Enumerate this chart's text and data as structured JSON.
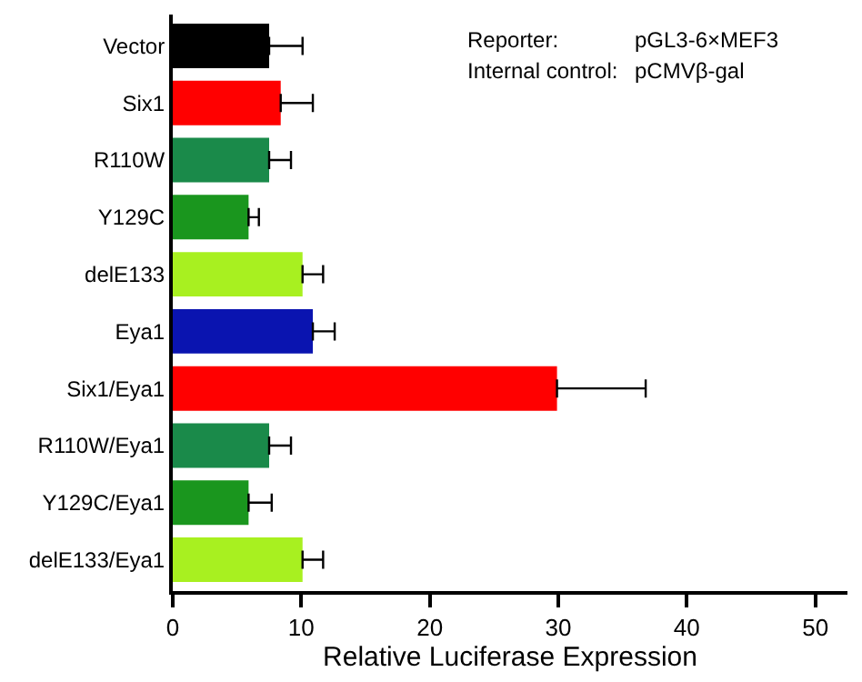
{
  "chart_data": {
    "type": "bar",
    "orientation": "horizontal",
    "xlabel": "Relative Luciferase Expression",
    "categories": [
      "Vector",
      "Six1",
      "R110W",
      "Y129C",
      "delE133",
      "Eya1",
      "Six1/Eya1",
      "R110W/Eya1",
      "Y129C/Eya1",
      "delE133/Eya1"
    ],
    "values": [
      7.5,
      8.4,
      7.5,
      5.9,
      10.1,
      10.9,
      29.9,
      7.5,
      5.9,
      10.1
    ],
    "errors": [
      [
        7.5,
        10.1
      ],
      [
        8.4,
        10.9
      ],
      [
        7.5,
        9.2
      ],
      [
        5.9,
        6.7
      ],
      [
        10.1,
        11.7
      ],
      [
        10.9,
        12.6
      ],
      [
        29.9,
        36.8
      ],
      [
        7.5,
        9.2
      ],
      [
        5.9,
        7.7
      ],
      [
        10.1,
        11.7
      ]
    ],
    "colors": [
      "#000000",
      "#ff0000",
      "#1a8a4a",
      "#1a961e",
      "#a8f020",
      "#0a14b0",
      "#ff0000",
      "#1a8a4a",
      "#1a961e",
      "#a8f020"
    ],
    "xlim": [
      0,
      52.5
    ],
    "xticks": [
      0,
      10,
      20,
      30,
      40,
      50
    ],
    "annotations": [
      "Reporter:",
      "pGL3-6×MEF3",
      "Internal control:",
      "pCMVβ-gal"
    ]
  }
}
